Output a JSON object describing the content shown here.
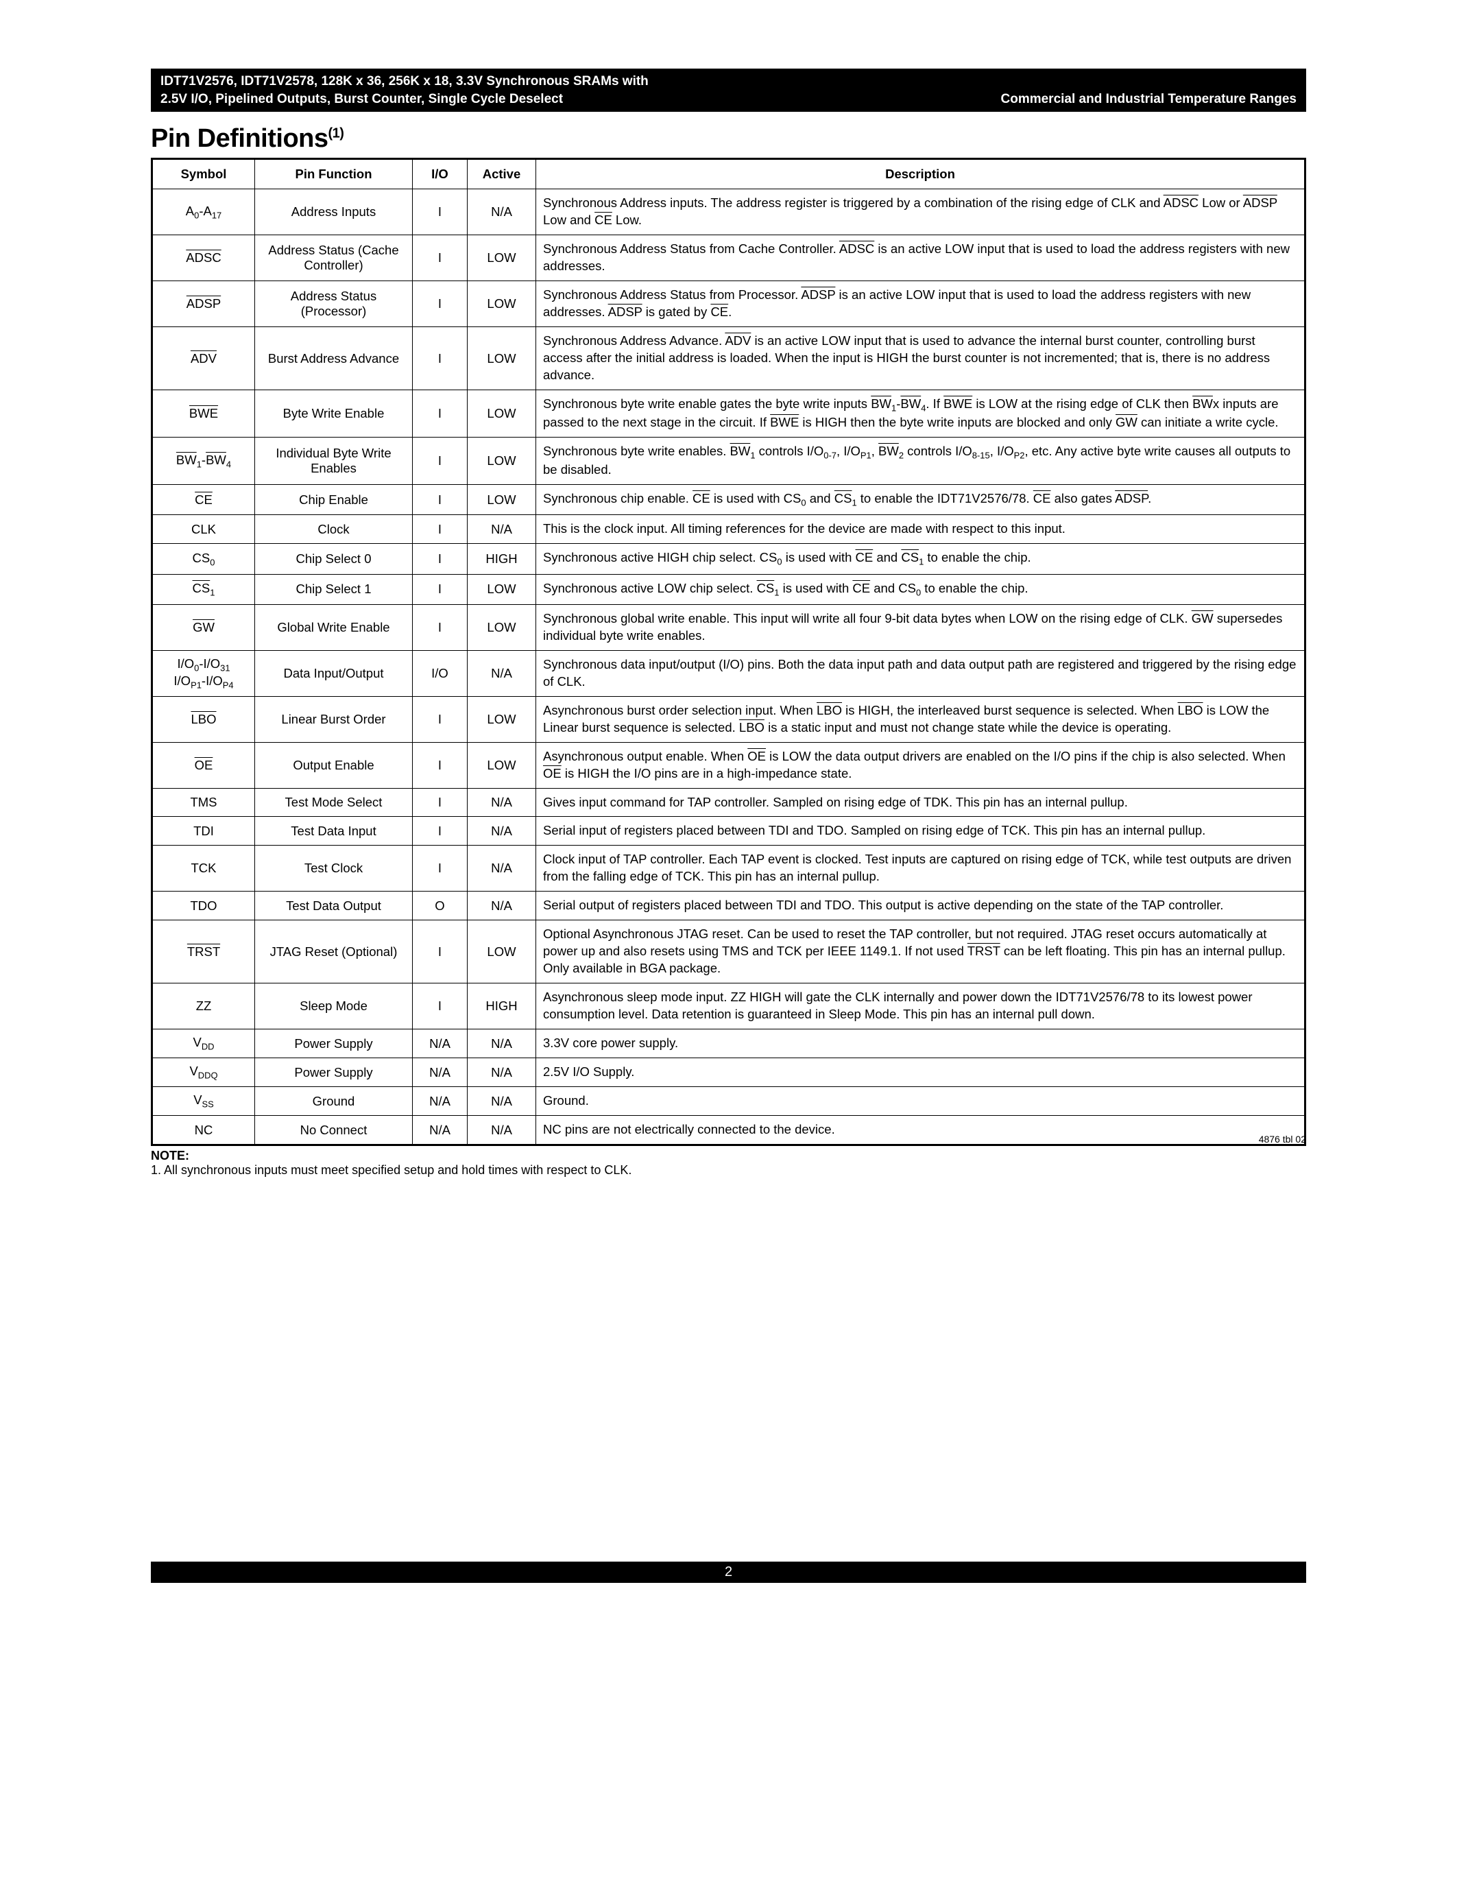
{
  "header": {
    "line1": "IDT71V2576, IDT71V2578, 128K x 36, 256K x 18, 3.3V Synchronous SRAMs with",
    "line2_left": "2.5V I/O, Pipelined Outputs, Burst Counter, Single Cycle Deselect",
    "line2_right": "Commercial and Industrial Temperature Ranges"
  },
  "section_title": "Pin Definitions",
  "section_title_sup": "(1)",
  "columns": {
    "c1": "Symbol",
    "c2": "Pin Function",
    "c3": "I/O",
    "c4": "Active",
    "c5": "Description"
  },
  "rows": [
    {
      "sym_html": "A<span class='sub'>0</span>-A<span class='sub'>17</span>",
      "func": "Address Inputs",
      "io": "I",
      "act": "N/A",
      "desc_html": "Synchronous Address inputs. The address register is triggered by a combination of the rising edge of CLK and <span class='ov'>ADSC</span> Low or <span class='ov'>ADSP</span> Low and <span class='ov'>CE</span> Low."
    },
    {
      "sym_html": "<span class='ov'>ADSC</span>",
      "func": "Address Status (Cache Controller)",
      "io": "I",
      "act": "LOW",
      "desc_html": "Synchronous Address Status from Cache Controller. <span class='ov'>ADSC</span> is an active LOW input that is used to load the address registers with new addresses."
    },
    {
      "sym_html": "<span class='ov'>ADSP</span>",
      "func": "Address Status (Processor)",
      "io": "I",
      "act": "LOW",
      "desc_html": "Synchronous Address Status from Processor. <span class='ov'>ADSP</span> is an active LOW input that is used to load the address registers with new addresses. <span class='ov'>ADSP</span> is gated by <span class='ov'>CE</span>."
    },
    {
      "sym_html": "<span class='ov'>ADV</span>",
      "func": "Burst Address Advance",
      "io": "I",
      "act": "LOW",
      "desc_html": "Synchronous Address Advance. <span class='ov'>ADV</span> is an active LOW input that is used to advance the internal burst counter, controlling burst access after the initial address is loaded. When the input is HIGH the burst counter is not incremented; that is, there is no address advance."
    },
    {
      "sym_html": "<span class='ov'>BWE</span>",
      "func": "Byte Write Enable",
      "io": "I",
      "act": "LOW",
      "desc_html": "Synchronous byte write enable gates the byte write inputs <span class='ov'>BW</span><span class='sub'>1</span>-<span class='ov'>BW</span><span class='sub'>4</span>. If <span class='ov'>BWE</span> is LOW at the rising edge of CLK then <span class='ov'>BW</span>x inputs are passed to the next stage in the circuit. If <span class='ov'>BWE</span> is HIGH then the byte write inputs are blocked and only <span class='ov'>GW</span> can initiate a write cycle."
    },
    {
      "sym_html": "<span class='ov'>BW</span><span class='sub'>1</span>-<span class='ov'>BW</span><span class='sub'>4</span>",
      "func": "Individual Byte Write Enables",
      "io": "I",
      "act": "LOW",
      "desc_html": "Synchronous byte write enables. <span class='ov'>BW</span><span class='sub'>1</span> controls I/O<span class='sub'>0-7</span>, I/O<span class='sub'>P1</span>, <span class='ov'>BW</span><span class='sub'>2</span> controls I/O<span class='sub'>8-15</span>, I/O<span class='sub'>P2</span>, etc. Any active byte write causes all outputs to be disabled."
    },
    {
      "sym_html": "<span class='ov'>CE</span>",
      "func": "Chip Enable",
      "io": "I",
      "act": "LOW",
      "desc_html": "Synchronous chip enable. <span class='ov'>CE</span> is used with CS<span class='sub'>0</span> and <span class='ov'>CS</span><span class='sub'>1</span> to enable the IDT71V2576/78. <span class='ov'>CE</span> also gates <span class='ov'>ADSP</span>."
    },
    {
      "sym_html": "CLK",
      "func": "Clock",
      "io": "I",
      "act": "N/A",
      "desc_html": "This is the clock input. All timing references for the device are made with respect to this input."
    },
    {
      "sym_html": "CS<span class='sub'>0</span>",
      "func": "Chip Select 0",
      "io": "I",
      "act": "HIGH",
      "desc_html": "Synchronous active HIGH chip select. CS<span class='sub'>0</span> is used with <span class='ov'>CE</span> and <span class='ov'>CS</span><span class='sub'>1</span> to enable the chip."
    },
    {
      "sym_html": "<span class='ov'>CS</span><span class='sub'>1</span>",
      "func": "Chip Select 1",
      "io": "I",
      "act": "LOW",
      "desc_html": "Synchronous active LOW chip select. <span class='ov'>CS</span><span class='sub'>1</span> is used with <span class='ov'>CE</span> and CS<span class='sub'>0</span> to enable the chip."
    },
    {
      "sym_html": "<span class='ov'>GW</span>",
      "func": "Global Write Enable",
      "io": "I",
      "act": "LOW",
      "desc_html": "Synchronous global write enable. This input will write all four 9-bit data bytes when LOW on the rising edge of CLK. <span class='ov'>GW</span> supersedes individual byte write enables."
    },
    {
      "sym_html": "I/O<span class='sub'>0</span>-I/O<span class='sub'>31</span><br>I/O<span class='sub'>P1</span>-I/O<span class='sub'>P4</span>",
      "func": "Data Input/Output",
      "io": "I/O",
      "act": "N/A",
      "desc_html": "Synchronous data input/output (I/O) pins. Both the data input path and data output path are registered and triggered by the rising edge of CLK."
    },
    {
      "sym_html": "<span class='ov'>LBO</span>",
      "func": "Linear Burst Order",
      "io": "I",
      "act": "LOW",
      "desc_html": "Asynchronous burst order selection input. When <span class='ov'>LBO</span> is HIGH, the interleaved burst sequence is selected. When <span class='ov'>LBO</span> is LOW the Linear burst sequence is selected. <span class='ov'>LBO</span> is a static input and must not change state while the device is operating."
    },
    {
      "sym_html": "<span class='ov'>OE</span>",
      "func": "Output Enable",
      "io": "I",
      "act": "LOW",
      "desc_html": "Asynchronous output enable. When <span class='ov'>OE</span> is LOW the data output drivers are enabled on the I/O pins if the chip is also selected. When <span class='ov'>OE</span> is HIGH the I/O pins are in a high-impedance state."
    },
    {
      "sym_html": "TMS",
      "func": "Test Mode Select",
      "io": "I",
      "act": "N/A",
      "desc_html": "Gives input command for TAP controller. Sampled on rising edge of TDK. This pin has an internal pullup."
    },
    {
      "sym_html": "TDI",
      "func": "Test Data Input",
      "io": "I",
      "act": "N/A",
      "desc_html": "Serial input of registers placed between TDI and TDO. Sampled on rising edge of TCK. This pin has an internal pullup."
    },
    {
      "sym_html": "TCK",
      "func": "Test Clock",
      "io": "I",
      "act": "N/A",
      "desc_html": "Clock input of TAP controller. Each TAP event is clocked. Test inputs are captured on rising edge of TCK, while test outputs are driven from the falling edge of TCK. This pin has an internal pullup."
    },
    {
      "sym_html": "TDO",
      "func": "Test Data Output",
      "io": "O",
      "act": "N/A",
      "desc_html": "Serial output of registers placed between TDI and TDO. This output is active depending on the state of the TAP controller."
    },
    {
      "sym_html": "<span class='ov'>TRST</span>",
      "func": "JTAG Reset (Optional)",
      "io": "I",
      "act": "LOW",
      "desc_html": "Optional Asynchronous JTAG reset. Can be used to reset the TAP controller, but not required. JTAG reset occurs automatically at power up and also resets using TMS and TCK per IEEE 1149.1. If not used <span class='ov'>TRST</span> can be left floating. This pin has an internal pullup. Only available in BGA package."
    },
    {
      "sym_html": "ZZ",
      "func": "Sleep Mode",
      "io": "I",
      "act": "HIGH",
      "desc_html": "Asynchronous sleep mode input. ZZ HIGH will gate the CLK internally and power down the IDT71V2576/78 to its lowest power consumption level. Data retention is guaranteed in Sleep Mode. This pin has an internal pull down."
    },
    {
      "sym_html": "V<span class='sub'>DD</span>",
      "func": "Power Supply",
      "io": "N/A",
      "act": "N/A",
      "desc_html": "3.3V core power supply."
    },
    {
      "sym_html": "V<span class='sub'>DDQ</span>",
      "func": "Power Supply",
      "io": "N/A",
      "act": "N/A",
      "desc_html": "2.5V I/O Supply."
    },
    {
      "sym_html": "V<span class='sub'>SS</span>",
      "func": "Ground",
      "io": "N/A",
      "act": "N/A",
      "desc_html": "Ground."
    },
    {
      "sym_html": "NC",
      "func": "No Connect",
      "io": "N/A",
      "act": "N/A",
      "desc_html": "NC pins are not electrically connected to the device."
    }
  ],
  "fig_ref": "4876 tbl 02",
  "note_header": "NOTE:",
  "note_body": "1.  All synchronous inputs must meet specified setup and hold times with respect to CLK.",
  "page_number": "2"
}
